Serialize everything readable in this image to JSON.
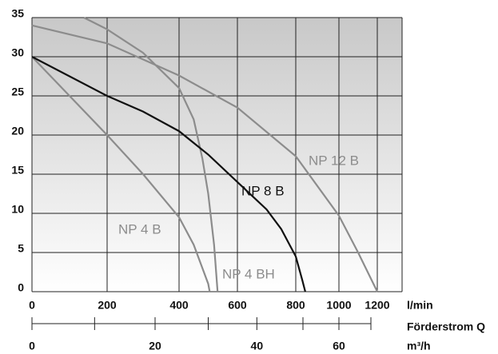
{
  "chart_data": {
    "type": "line",
    "x_label": "l/min",
    "x2_label": "Förderstrom Q",
    "x2_unit_label": "m³/h",
    "xlim": [
      0,
      1330
    ],
    "xticks": [
      0,
      200,
      400,
      600,
      800,
      1000,
      1200
    ],
    "x2ticks": [
      0,
      20,
      40,
      60
    ],
    "x2minor": [
      10,
      30,
      50,
      70
    ],
    "ylim": [
      0,
      35
    ],
    "yticks": [
      0,
      5,
      10,
      15,
      20,
      25,
      30,
      35
    ],
    "grid": true,
    "series": [
      {
        "name": "NP 4 B",
        "color": "#8c8c8c",
        "x": [
          0,
          100,
          200,
          300,
          400,
          450,
          500,
          505
        ],
        "values": [
          30,
          25,
          20,
          15,
          9.5,
          6,
          1,
          0
        ]
      },
      {
        "name": "NP 4 BH",
        "color": "#8c8c8c",
        "x": [
          138,
          200,
          300,
          400,
          450,
          480,
          500,
          520,
          532
        ],
        "values": [
          35,
          33.5,
          30.5,
          26,
          22,
          17,
          12.5,
          6,
          0
        ]
      },
      {
        "name": "NP 8 B",
        "color": "#111111",
        "x": [
          0,
          100,
          200,
          300,
          400,
          500,
          600,
          700,
          750,
          800,
          830,
          844
        ],
        "values": [
          30,
          27.5,
          25,
          23,
          20.5,
          17.5,
          14,
          10.5,
          8,
          4.5,
          1.5,
          0
        ]
      },
      {
        "name": "NP 12 B",
        "color": "#8c8c8c",
        "x": [
          0,
          200,
          400,
          600,
          800,
          1000,
          1100,
          1200
        ],
        "values": [
          34,
          31.7,
          27.6,
          23.5,
          17.3,
          9.7,
          5,
          0
        ]
      }
    ]
  }
}
